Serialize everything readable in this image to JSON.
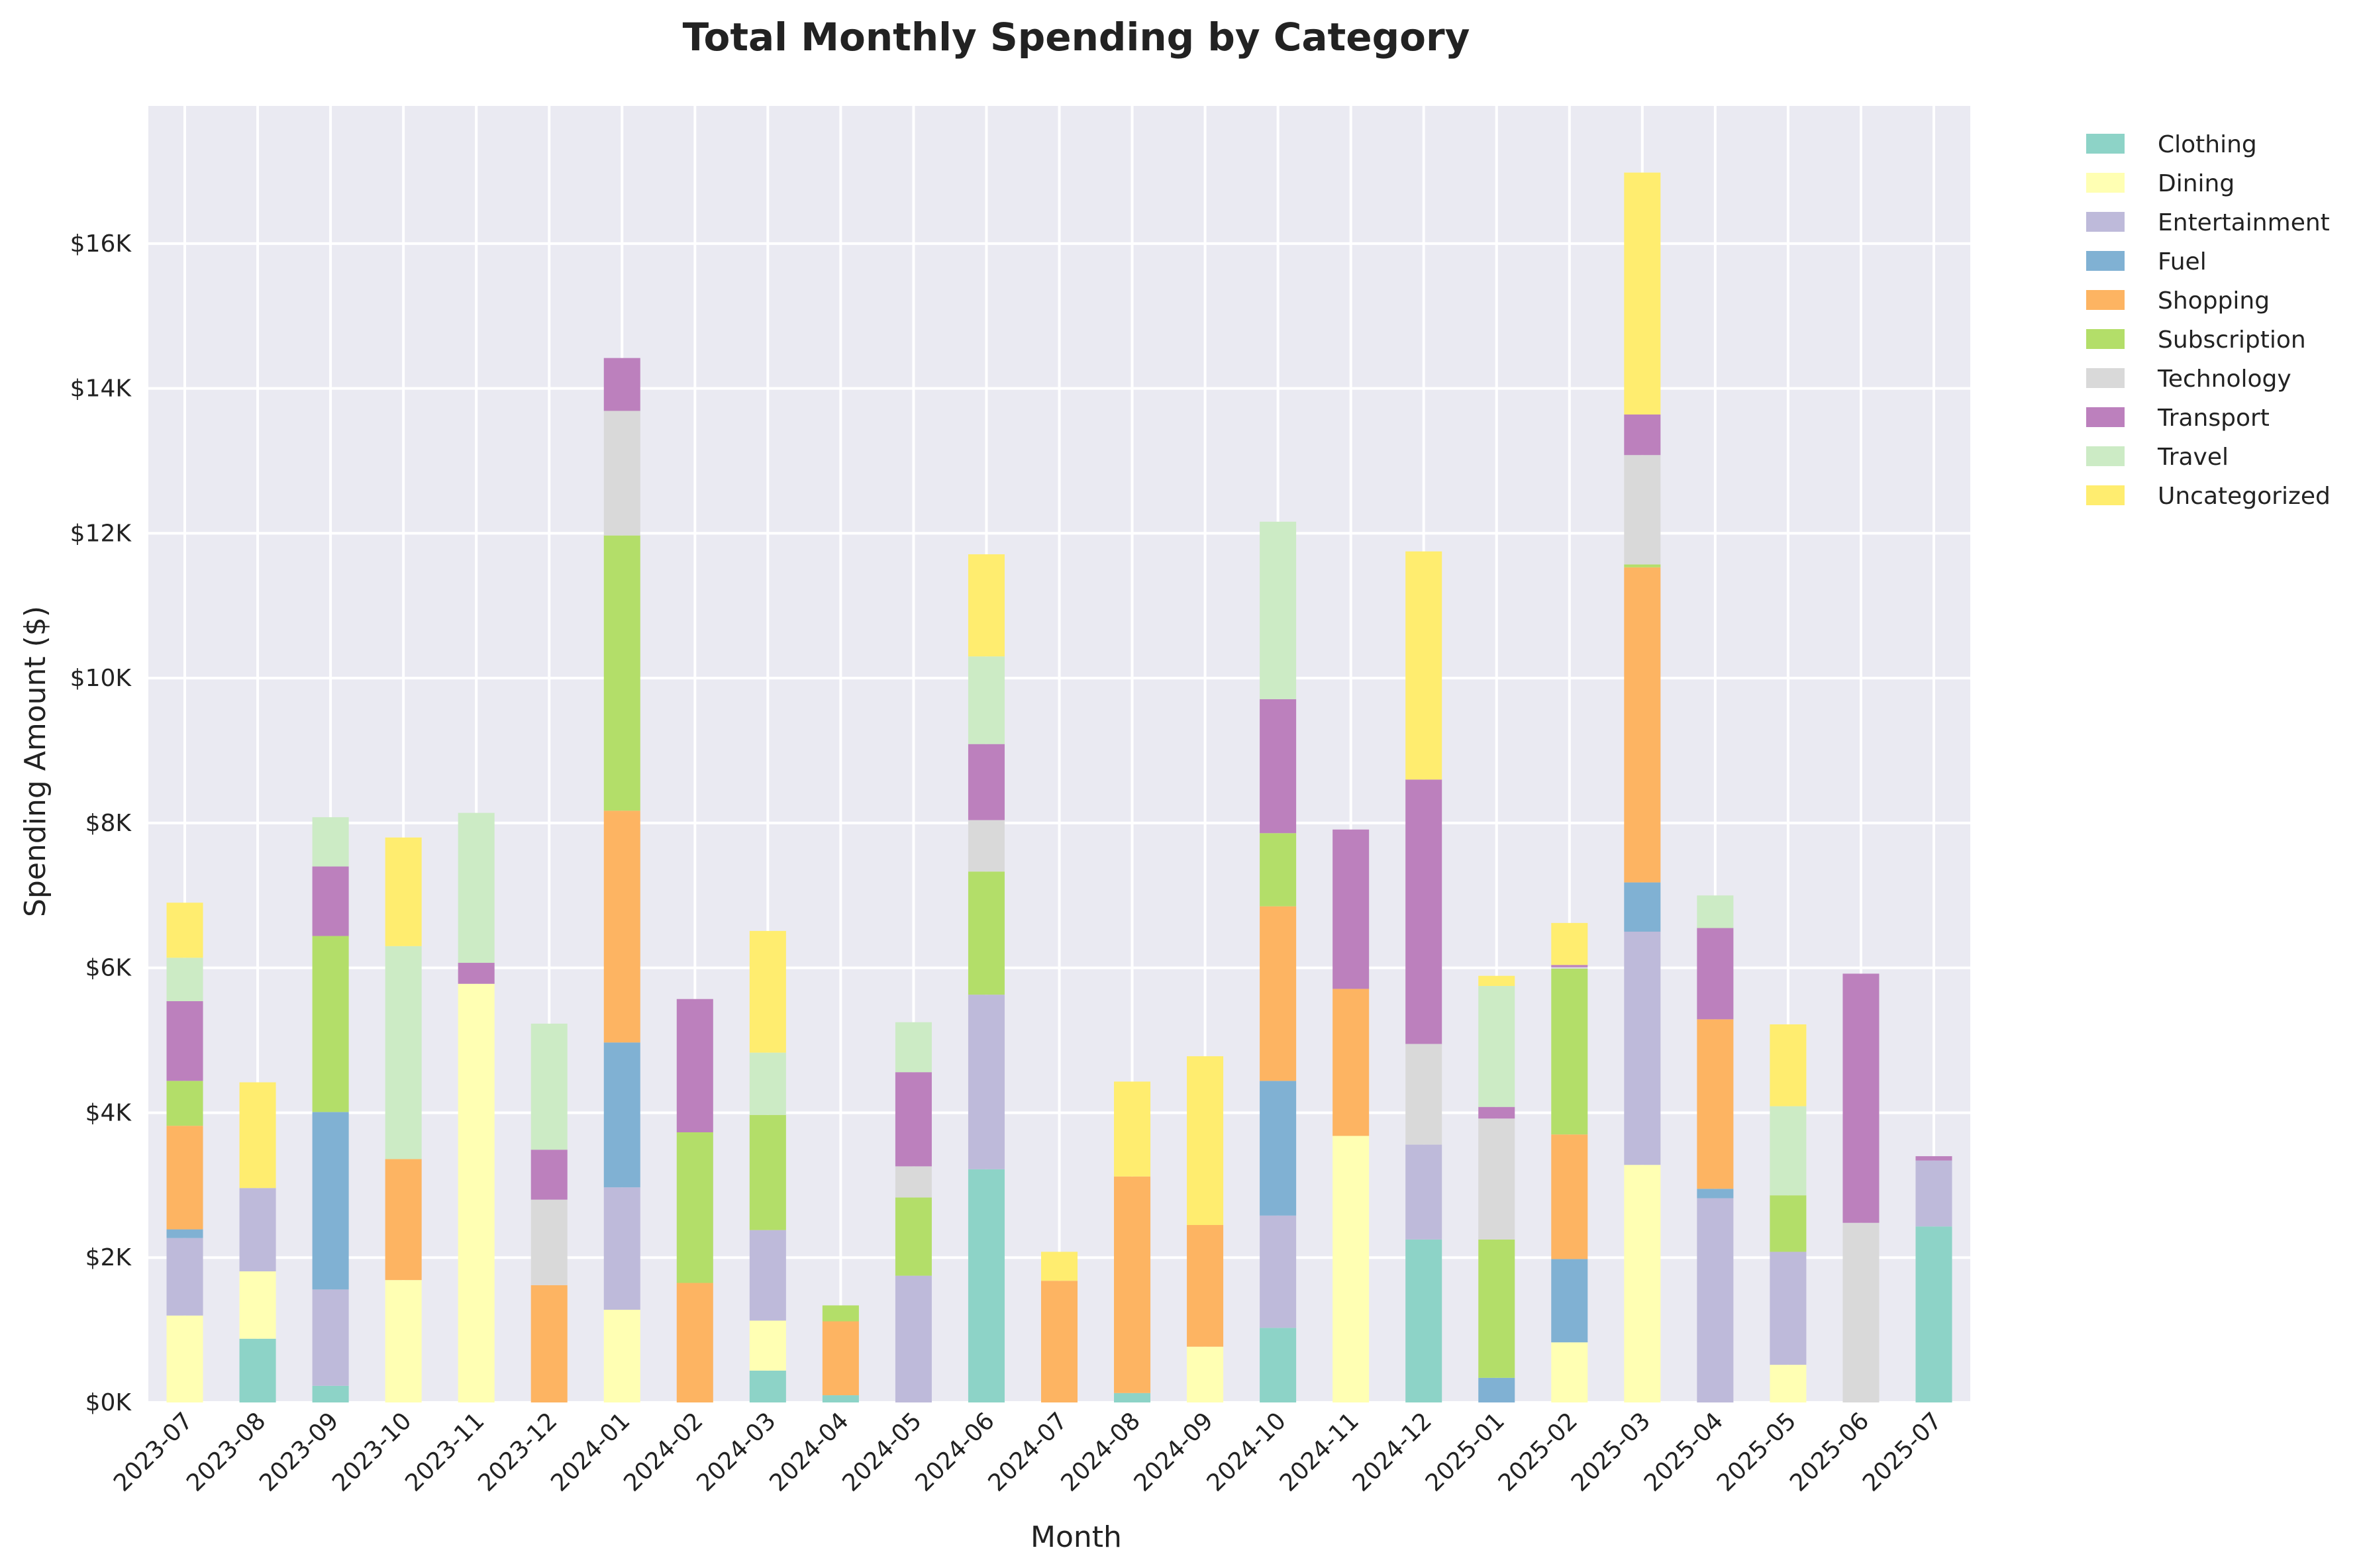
{
  "chart_data": {
    "type": "bar",
    "stacked": true,
    "title": "Total Monthly Spending by Category",
    "xlabel": "Month",
    "ylabel": "Spending Amount ($)",
    "ylim": [
      0,
      17900
    ],
    "yticks": [
      0,
      2000,
      4000,
      6000,
      8000,
      10000,
      12000,
      14000,
      16000
    ],
    "ytick_labels": [
      "$0K",
      "$2K",
      "$4K",
      "$6K",
      "$8K",
      "$10K",
      "$12K",
      "$14K",
      "$16K"
    ],
    "grid": true,
    "legend_position": "outside-top-right",
    "categories": [
      "2023-07",
      "2023-08",
      "2023-09",
      "2023-10",
      "2023-11",
      "2023-12",
      "2024-01",
      "2024-02",
      "2024-03",
      "2024-04",
      "2024-05",
      "2024-06",
      "2024-07",
      "2024-08",
      "2024-09",
      "2024-10",
      "2024-11",
      "2024-12",
      "2025-01",
      "2025-02",
      "2025-03",
      "2025-04",
      "2025-05",
      "2025-06",
      "2025-07"
    ],
    "series": [
      {
        "name": "Clothing",
        "color": "#8dd3c7",
        "values": [
          0,
          880,
          230,
          0,
          0,
          0,
          0,
          0,
          440,
          100,
          0,
          3220,
          0,
          130,
          0,
          1030,
          0,
          2250,
          0,
          0,
          0,
          0,
          0,
          0,
          2430
        ]
      },
      {
        "name": "Dining",
        "color": "#ffffb3",
        "values": [
          1200,
          930,
          0,
          1690,
          5780,
          0,
          1280,
          0,
          690,
          0,
          0,
          0,
          0,
          0,
          770,
          0,
          3680,
          0,
          0,
          830,
          3280,
          0,
          520,
          0,
          0
        ]
      },
      {
        "name": "Entertainment",
        "color": "#bebada",
        "values": [
          1070,
          1150,
          1330,
          0,
          0,
          0,
          1690,
          0,
          1250,
          0,
          1750,
          2410,
          0,
          0,
          0,
          1550,
          0,
          1310,
          0,
          0,
          3220,
          2820,
          1560,
          0,
          910
        ]
      },
      {
        "name": "Fuel",
        "color": "#80b1d3",
        "values": [
          120,
          0,
          2450,
          0,
          0,
          0,
          2000,
          0,
          0,
          0,
          0,
          0,
          0,
          0,
          0,
          1860,
          0,
          0,
          340,
          1150,
          680,
          130,
          0,
          0,
          0
        ]
      },
      {
        "name": "Shopping",
        "color": "#fdb462",
        "values": [
          1430,
          0,
          0,
          1670,
          0,
          1620,
          3200,
          1650,
          0,
          1020,
          0,
          0,
          1680,
          2990,
          1680,
          2410,
          2030,
          0,
          0,
          1720,
          4350,
          2340,
          0,
          0,
          0
        ]
      },
      {
        "name": "Subscription",
        "color": "#b3de69",
        "values": [
          620,
          0,
          2430,
          0,
          0,
          0,
          3800,
          2080,
          1590,
          220,
          1080,
          1700,
          0,
          0,
          0,
          1010,
          0,
          0,
          1910,
          2290,
          40,
          0,
          780,
          0,
          0
        ]
      },
      {
        "name": "Technology",
        "color": "#d9d9d9",
        "values": [
          0,
          0,
          0,
          0,
          0,
          1180,
          1720,
          0,
          0,
          0,
          430,
          710,
          0,
          0,
          0,
          0,
          0,
          1390,
          1670,
          20,
          1510,
          0,
          0,
          2480,
          0
        ]
      },
      {
        "name": "Transport",
        "color": "#bc80bd",
        "values": [
          1100,
          0,
          960,
          0,
          290,
          690,
          730,
          1840,
          0,
          0,
          1300,
          1050,
          0,
          0,
          0,
          1850,
          2200,
          3650,
          160,
          30,
          560,
          1260,
          0,
          3440,
          60
        ]
      },
      {
        "name": "Travel",
        "color": "#ccebc5",
        "values": [
          600,
          0,
          680,
          2940,
          2070,
          1740,
          0,
          0,
          860,
          0,
          690,
          1210,
          0,
          0,
          0,
          2450,
          0,
          0,
          1670,
          0,
          0,
          450,
          1230,
          0,
          0
        ]
      },
      {
        "name": "Uncategorized",
        "color": "#ffed6f",
        "values": [
          760,
          1460,
          0,
          1500,
          0,
          0,
          0,
          0,
          1680,
          0,
          0,
          1410,
          400,
          1310,
          2330,
          0,
          0,
          3150,
          140,
          580,
          3340,
          0,
          1130,
          0,
          0
        ]
      }
    ]
  }
}
